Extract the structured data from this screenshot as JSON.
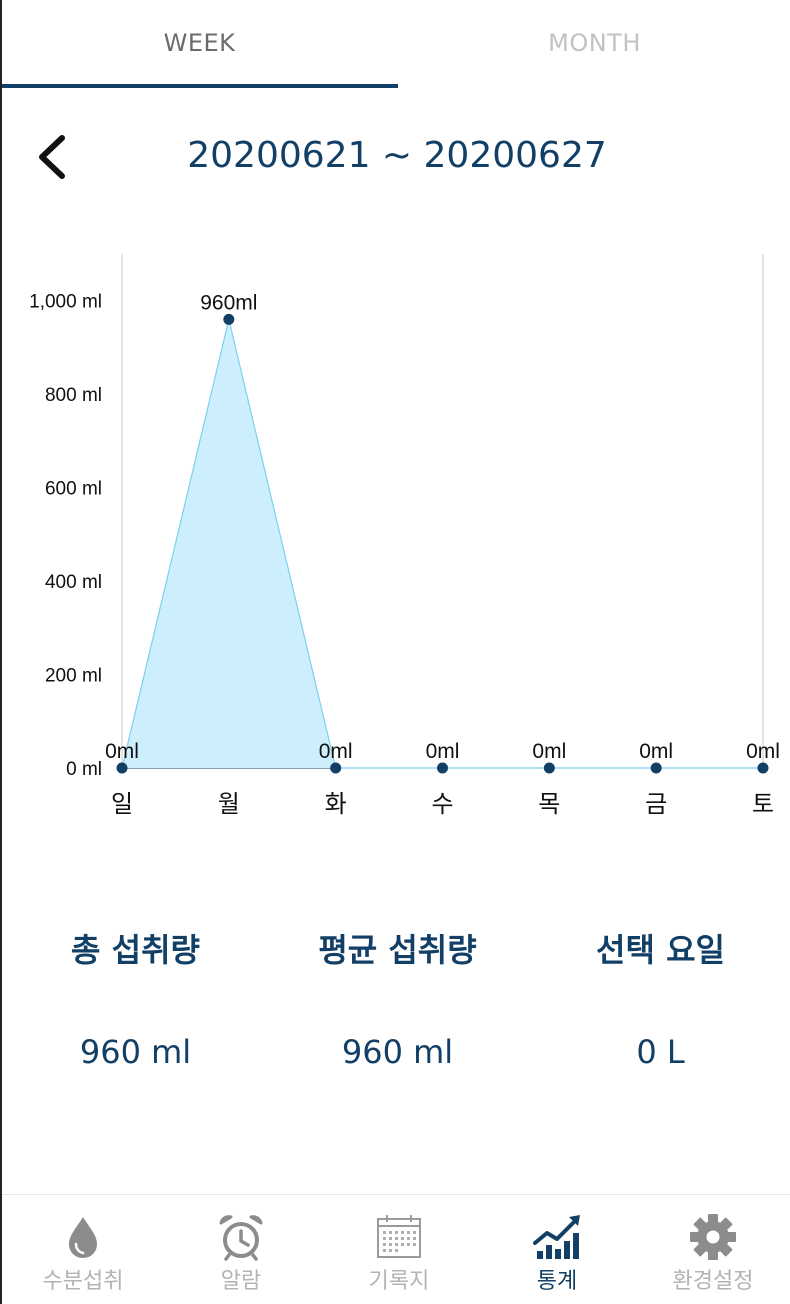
{
  "tabs": [
    {
      "label": "WEEK",
      "active": true
    },
    {
      "label": "MONTH",
      "active": false
    }
  ],
  "header": {
    "back_icon": "chevron-left-icon",
    "date_range": "20200621 ~ 20200627"
  },
  "chart_data": {
    "type": "area",
    "categories": [
      "일",
      "월",
      "화",
      "수",
      "목",
      "금",
      "토"
    ],
    "values": [
      0,
      960,
      0,
      0,
      0,
      0,
      0
    ],
    "data_labels": [
      "0ml",
      "960ml",
      "0ml",
      "0ml",
      "0ml",
      "0ml",
      "0ml"
    ],
    "ytick_labels": [
      "0 ml",
      "200 ml",
      "400 ml",
      "600 ml",
      "800 ml",
      "1,000 ml"
    ],
    "yticks": [
      0,
      200,
      400,
      600,
      800,
      1000
    ],
    "ylim": [
      0,
      1100
    ],
    "fill_color": "#cdeefc",
    "line_color": "#7fcff0",
    "point_color": "#123f66"
  },
  "stats": [
    {
      "label": "총 섭취량",
      "value": "960 ml"
    },
    {
      "label": "평균 섭취량",
      "value": "960 ml"
    },
    {
      "label": "선택 요일",
      "value": "0 L"
    }
  ],
  "nav": [
    {
      "label": "수분섭취",
      "icon": "water-drop-icon",
      "active": false
    },
    {
      "label": "알람",
      "icon": "alarm-clock-icon",
      "active": false
    },
    {
      "label": "기록지",
      "icon": "calendar-icon",
      "active": false
    },
    {
      "label": "통계",
      "icon": "trend-chart-icon",
      "active": true
    },
    {
      "label": "환경설정",
      "icon": "gear-icon",
      "active": false
    }
  ],
  "colors": {
    "primary": "#123f66",
    "inactive": "#b3b3b3"
  }
}
